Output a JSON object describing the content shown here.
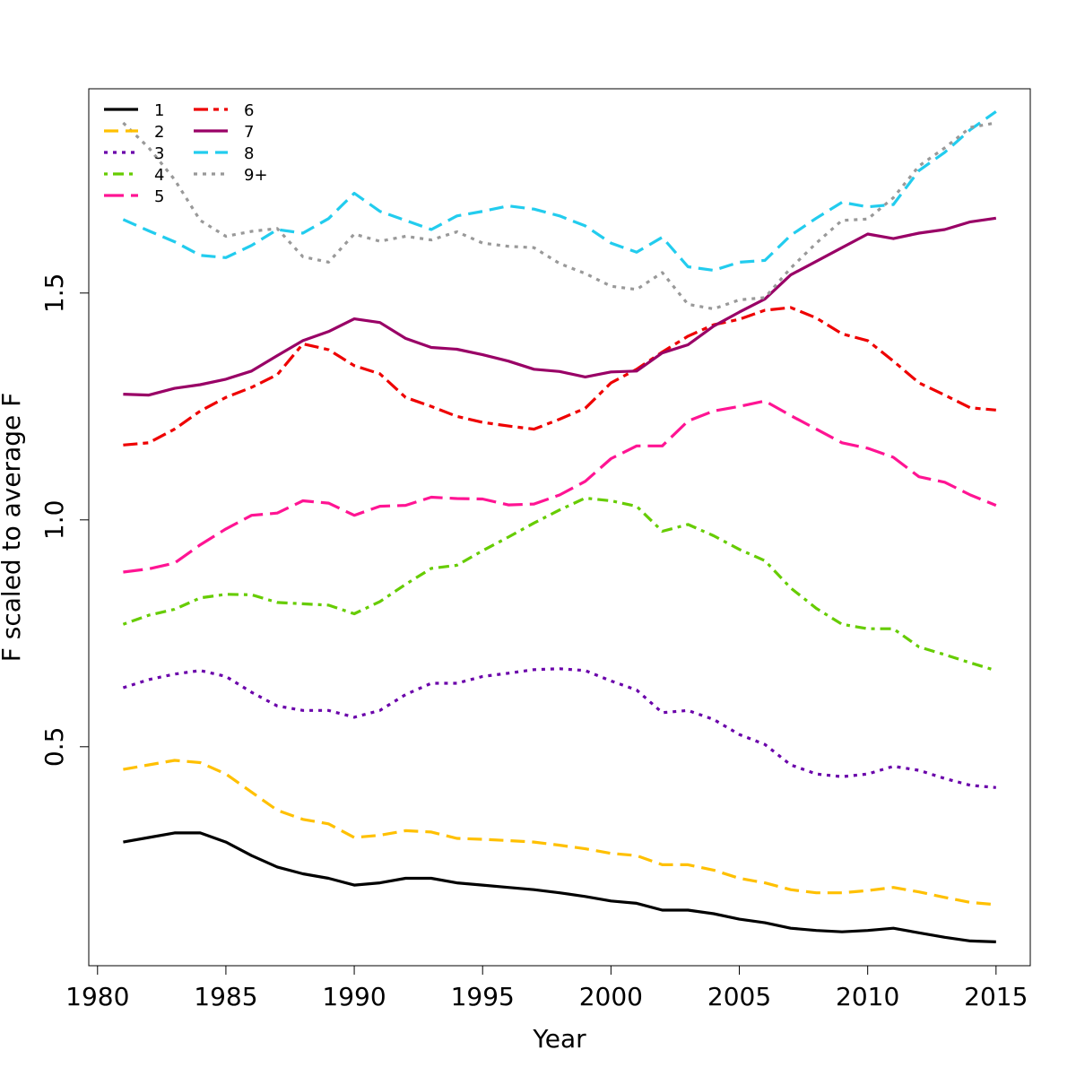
{
  "chart_data": {
    "type": "line",
    "title": "",
    "xlabel": "Year",
    "ylabel": "F scaled to average F",
    "xlim": [
      1980,
      2016
    ],
    "ylim": [
      0.0,
      1.95
    ],
    "x_ticks": [
      1980,
      1985,
      1990,
      1995,
      2000,
      2005,
      2010,
      2015
    ],
    "y_ticks": [
      0.5,
      1.0,
      1.5
    ],
    "x_tick_labels": [
      "1980",
      "1985",
      "1990",
      "1995",
      "2000",
      "2005",
      "2010",
      "2015"
    ],
    "y_tick_labels": [
      "0.5",
      "1.0",
      "1.5"
    ],
    "grid": false,
    "legend_position": "top-left",
    "x": [
      1981,
      1982,
      1983,
      1984,
      1985,
      1986,
      1987,
      1988,
      1989,
      1990,
      1991,
      1992,
      1993,
      1994,
      1995,
      1996,
      1997,
      1998,
      1999,
      2000,
      2001,
      2002,
      2003,
      2004,
      2005,
      2006,
      2007,
      2008,
      2009,
      2010,
      2011,
      2012,
      2013,
      2014,
      2015
    ],
    "series": [
      {
        "name": "1",
        "color": "#000000",
        "dash": "solid",
        "values": [
          0.29,
          0.3,
          0.31,
          0.31,
          0.29,
          0.26,
          0.235,
          0.22,
          0.21,
          0.195,
          0.2,
          0.21,
          0.21,
          0.2,
          0.195,
          0.19,
          0.185,
          0.178,
          0.17,
          0.16,
          0.155,
          0.14,
          0.14,
          0.132,
          0.12,
          0.112,
          0.1,
          0.095,
          0.092,
          0.095,
          0.1,
          0.09,
          0.08,
          0.072,
          0.07
        ]
      },
      {
        "name": "2",
        "color": "#ffc000",
        "dash": "dashed",
        "values": [
          0.45,
          0.46,
          0.47,
          0.465,
          0.44,
          0.4,
          0.36,
          0.34,
          0.33,
          0.3,
          0.305,
          0.315,
          0.312,
          0.298,
          0.296,
          0.293,
          0.29,
          0.283,
          0.275,
          0.265,
          0.26,
          0.24,
          0.24,
          0.228,
          0.21,
          0.2,
          0.185,
          0.178,
          0.178,
          0.183,
          0.19,
          0.18,
          0.168,
          0.157,
          0.152
        ]
      },
      {
        "name": "3",
        "color": "#6a00aa",
        "dash": "dotted",
        "values": [
          0.63,
          0.648,
          0.66,
          0.668,
          0.655,
          0.62,
          0.59,
          0.58,
          0.58,
          0.565,
          0.58,
          0.615,
          0.64,
          0.64,
          0.655,
          0.662,
          0.67,
          0.672,
          0.668,
          0.645,
          0.625,
          0.575,
          0.58,
          0.56,
          0.527,
          0.505,
          0.46,
          0.44,
          0.434,
          0.44,
          0.457,
          0.448,
          0.43,
          0.415,
          0.41
        ]
      },
      {
        "name": "4",
        "color": "#66cc00",
        "dash": "dotdash",
        "values": [
          0.77,
          0.79,
          0.803,
          0.828,
          0.836,
          0.835,
          0.818,
          0.815,
          0.812,
          0.793,
          0.82,
          0.858,
          0.893,
          0.9,
          0.932,
          0.962,
          0.993,
          1.022,
          1.048,
          1.042,
          1.03,
          0.975,
          0.99,
          0.965,
          0.935,
          0.91,
          0.85,
          0.805,
          0.77,
          0.76,
          0.76,
          0.72,
          0.703,
          0.685,
          0.668
        ]
      },
      {
        "name": "5",
        "color": "#ff1493",
        "dash": "longdash",
        "values": [
          0.885,
          0.892,
          0.905,
          0.945,
          0.98,
          1.01,
          1.015,
          1.042,
          1.037,
          1.01,
          1.03,
          1.032,
          1.05,
          1.047,
          1.046,
          1.033,
          1.035,
          1.055,
          1.085,
          1.135,
          1.163,
          1.163,
          1.218,
          1.24,
          1.25,
          1.262,
          1.23,
          1.2,
          1.17,
          1.158,
          1.138,
          1.095,
          1.083,
          1.055,
          1.032
        ]
      },
      {
        "name": "6",
        "color": "#ee0000",
        "dash": "twodash",
        "values": [
          1.165,
          1.17,
          1.2,
          1.24,
          1.27,
          1.292,
          1.32,
          1.388,
          1.375,
          1.34,
          1.322,
          1.27,
          1.25,
          1.228,
          1.215,
          1.207,
          1.2,
          1.222,
          1.246,
          1.302,
          1.332,
          1.37,
          1.405,
          1.43,
          1.442,
          1.462,
          1.468,
          1.445,
          1.41,
          1.395,
          1.35,
          1.302,
          1.275,
          1.247,
          1.242
        ]
      },
      {
        "name": "7",
        "color": "#990066",
        "dash": "solid",
        "values": [
          1.277,
          1.275,
          1.29,
          1.298,
          1.31,
          1.328,
          1.362,
          1.395,
          1.415,
          1.443,
          1.435,
          1.4,
          1.38,
          1.376,
          1.364,
          1.35,
          1.332,
          1.327,
          1.315,
          1.326,
          1.328,
          1.368,
          1.386,
          1.427,
          1.458,
          1.487,
          1.54,
          1.57,
          1.6,
          1.63,
          1.62,
          1.632,
          1.64,
          1.657,
          1.665
        ]
      },
      {
        "name": "8",
        "color": "#22ccee",
        "dash": "dashed",
        "values": [
          1.662,
          1.637,
          1.613,
          1.583,
          1.578,
          1.605,
          1.64,
          1.632,
          1.664,
          1.72,
          1.68,
          1.66,
          1.64,
          1.67,
          1.68,
          1.692,
          1.685,
          1.67,
          1.648,
          1.61,
          1.59,
          1.623,
          1.558,
          1.55,
          1.568,
          1.572,
          1.627,
          1.665,
          1.7,
          1.69,
          1.695,
          1.77,
          1.81,
          1.86,
          1.9
        ]
      },
      {
        "name": "9+",
        "color": "#999999",
        "dash": "dotted",
        "values": [
          1.875,
          1.82,
          1.75,
          1.66,
          1.625,
          1.636,
          1.642,
          1.58,
          1.568,
          1.63,
          1.614,
          1.625,
          1.617,
          1.635,
          1.61,
          1.603,
          1.6,
          1.565,
          1.543,
          1.515,
          1.508,
          1.545,
          1.475,
          1.465,
          1.485,
          1.49,
          1.555,
          1.61,
          1.66,
          1.663,
          1.71,
          1.78,
          1.82,
          1.865,
          1.875
        ]
      }
    ]
  }
}
